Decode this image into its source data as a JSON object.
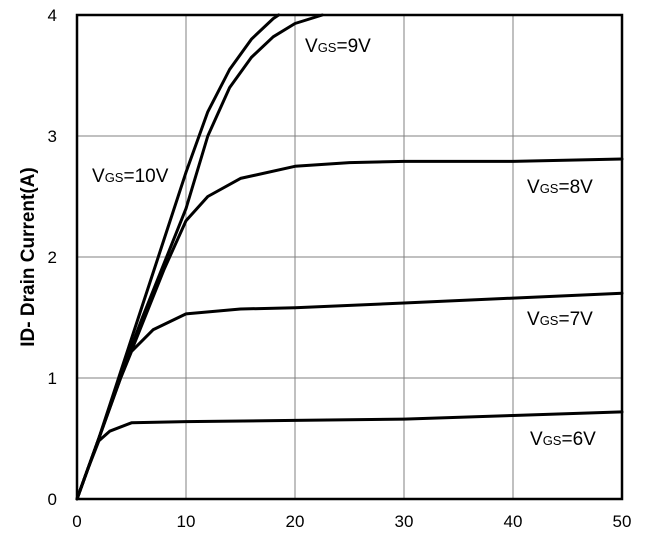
{
  "chart_data": {
    "type": "line",
    "title": "",
    "xlabel": "",
    "ylabel": "ID- Drain Current(A)",
    "xlim": [
      0,
      50
    ],
    "ylim": [
      0,
      4
    ],
    "grid": true,
    "x_ticks": [
      "0",
      "10",
      "20",
      "30",
      "40",
      "50"
    ],
    "y_ticks": [
      "0",
      "1",
      "2",
      "3",
      "4"
    ],
    "series": [
      {
        "label_main": "V",
        "label_sub": "GS",
        "label_rest": "=10V",
        "points": [
          [
            0,
            0
          ],
          [
            2,
            0.5
          ],
          [
            4,
            1.05
          ],
          [
            6,
            1.6
          ],
          [
            8,
            2.15
          ],
          [
            10,
            2.7
          ],
          [
            12,
            3.2
          ],
          [
            14,
            3.55
          ],
          [
            16,
            3.8
          ],
          [
            18,
            3.97
          ],
          [
            18.5,
            4.0
          ]
        ]
      },
      {
        "label_main": "V",
        "label_sub": "GS",
        "label_rest": "=9V",
        "points": [
          [
            0,
            0
          ],
          [
            2,
            0.5
          ],
          [
            4,
            1.02
          ],
          [
            6,
            1.5
          ],
          [
            8,
            1.95
          ],
          [
            10,
            2.4
          ],
          [
            12,
            3.0
          ],
          [
            14,
            3.4
          ],
          [
            16,
            3.65
          ],
          [
            18,
            3.82
          ],
          [
            20,
            3.93
          ],
          [
            22.5,
            4.0
          ]
        ]
      },
      {
        "label_main": "V",
        "label_sub": "GS",
        "label_rest": "=8V",
        "points": [
          [
            0,
            0
          ],
          [
            2,
            0.5
          ],
          [
            4,
            1.0
          ],
          [
            6,
            1.45
          ],
          [
            8,
            1.9
          ],
          [
            10,
            2.3
          ],
          [
            12,
            2.5
          ],
          [
            15,
            2.65
          ],
          [
            20,
            2.75
          ],
          [
            25,
            2.78
          ],
          [
            30,
            2.79
          ],
          [
            40,
            2.79
          ],
          [
            50,
            2.81
          ]
        ]
      },
      {
        "label_main": "V",
        "label_sub": "GS",
        "label_rest": "=7V",
        "points": [
          [
            0,
            0
          ],
          [
            2,
            0.5
          ],
          [
            4,
            1.0
          ],
          [
            5,
            1.22
          ],
          [
            7,
            1.4
          ],
          [
            10,
            1.53
          ],
          [
            15,
            1.57
          ],
          [
            20,
            1.58
          ],
          [
            30,
            1.62
          ],
          [
            40,
            1.66
          ],
          [
            50,
            1.7
          ]
        ]
      },
      {
        "label_main": "V",
        "label_sub": "GS",
        "label_rest": "=6V",
        "points": [
          [
            0,
            0
          ],
          [
            1,
            0.25
          ],
          [
            2,
            0.48
          ],
          [
            3,
            0.56
          ],
          [
            5,
            0.63
          ],
          [
            10,
            0.64
          ],
          [
            20,
            0.65
          ],
          [
            30,
            0.66
          ],
          [
            40,
            0.69
          ],
          [
            50,
            0.72
          ]
        ]
      }
    ]
  }
}
